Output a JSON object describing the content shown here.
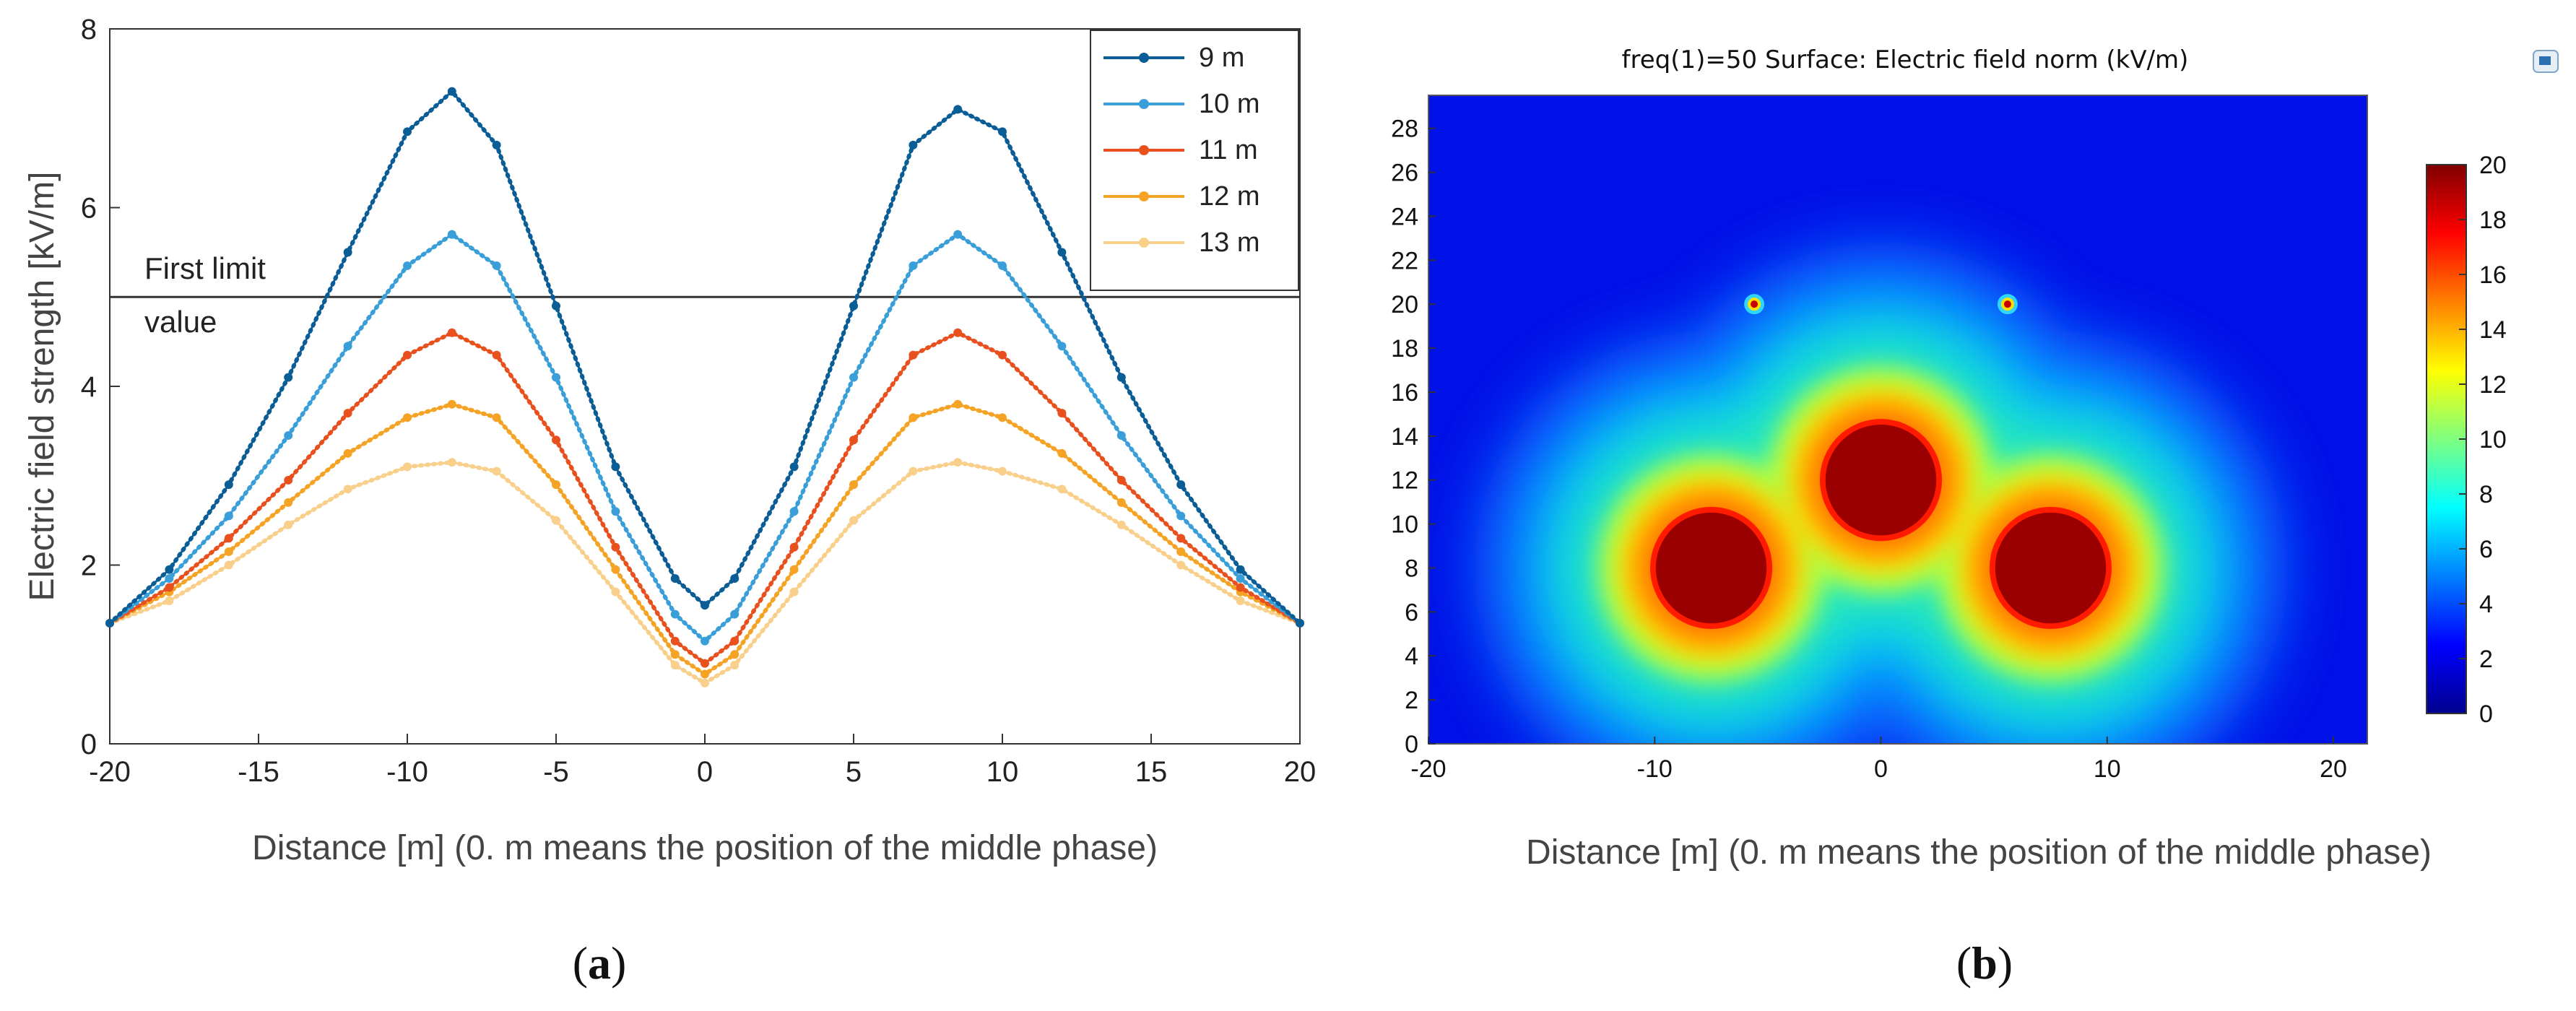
{
  "panels": {
    "a": {
      "caption_open": "(",
      "caption_letter": "a",
      "caption_close": ")"
    },
    "b": {
      "caption_open": "(",
      "caption_letter": "b",
      "caption_close": ")"
    }
  },
  "chart_data": [
    {
      "type": "line",
      "panel": "a",
      "title": "",
      "xlabel": "Distance [m] (0. m means the position of the middle phase)",
      "ylabel": "Electric field strength [kV/m]",
      "xlim": [
        -20,
        20
      ],
      "ylim": [
        0,
        8
      ],
      "xticks": [
        "-20",
        "-15",
        "-10",
        "-5",
        "0",
        "5",
        "10",
        "15",
        "20"
      ],
      "yticks": [
        "0",
        "2",
        "4",
        "6",
        "8"
      ],
      "grid": false,
      "legend": "top-right",
      "annotations": [
        "First limit",
        "value"
      ],
      "reference_line": {
        "y": 5,
        "label": "First limit value"
      },
      "x": [
        -20,
        -18,
        -16,
        -14,
        -12,
        -10,
        -8.5,
        -7,
        -5,
        -3,
        -1,
        0,
        1,
        3,
        5,
        7,
        8.5,
        10,
        12,
        14,
        16,
        18,
        20
      ],
      "series": [
        {
          "name": "9 m",
          "color": "#0b5d96",
          "values": [
            1.35,
            1.95,
            2.9,
            4.1,
            5.5,
            6.85,
            7.3,
            6.7,
            4.9,
            3.1,
            1.85,
            1.55,
            1.85,
            3.1,
            4.9,
            6.7,
            7.1,
            6.85,
            5.5,
            4.1,
            2.9,
            1.95,
            1.35
          ]
        },
        {
          "name": "10 m",
          "color": "#3a9fd8",
          "values": [
            1.35,
            1.85,
            2.55,
            3.45,
            4.45,
            5.35,
            5.7,
            5.35,
            4.1,
            2.6,
            1.45,
            1.15,
            1.45,
            2.6,
            4.1,
            5.35,
            5.7,
            5.35,
            4.45,
            3.45,
            2.55,
            1.85,
            1.35
          ]
        },
        {
          "name": "11 m",
          "color": "#e8501e",
          "values": [
            1.35,
            1.75,
            2.3,
            2.95,
            3.7,
            4.35,
            4.6,
            4.35,
            3.4,
            2.2,
            1.15,
            0.9,
            1.15,
            2.2,
            3.4,
            4.35,
            4.6,
            4.35,
            3.7,
            2.95,
            2.3,
            1.75,
            1.35
          ]
        },
        {
          "name": "12 m",
          "color": "#f4a325",
          "values": [
            1.35,
            1.7,
            2.15,
            2.7,
            3.25,
            3.65,
            3.8,
            3.65,
            2.9,
            1.95,
            1.0,
            0.78,
            1.0,
            1.95,
            2.9,
            3.65,
            3.8,
            3.65,
            3.25,
            2.7,
            2.15,
            1.7,
            1.35
          ]
        },
        {
          "name": "13 m",
          "color": "#f9cf8c",
          "values": [
            1.35,
            1.6,
            2.0,
            2.45,
            2.85,
            3.1,
            3.15,
            3.05,
            2.5,
            1.7,
            0.88,
            0.68,
            0.88,
            1.7,
            2.5,
            3.05,
            3.15,
            3.05,
            2.85,
            2.45,
            2.0,
            1.6,
            1.35
          ]
        }
      ]
    },
    {
      "type": "heatmap",
      "panel": "b",
      "title": "freq(1)=50   Surface: Electric field norm (kV/m)",
      "xlabel": "Distance [m] (0. m means the position of the middle phase)",
      "ylabel": "",
      "xlim": [
        -20,
        21.5
      ],
      "ylim": [
        0,
        29.5
      ],
      "xticks": [
        "-20",
        "-10",
        "0",
        "10",
        "20"
      ],
      "yticks": [
        "0",
        "2",
        "4",
        "6",
        "8",
        "10",
        "12",
        "14",
        "16",
        "18",
        "20",
        "22",
        "24",
        "26",
        "28"
      ],
      "colorbar": {
        "min": 0,
        "max": 20,
        "ticks": [
          "0",
          "2",
          "4",
          "6",
          "8",
          "10",
          "12",
          "14",
          "16",
          "18",
          "20"
        ],
        "colormap": "jet"
      },
      "sources": [
        {
          "name": "left-phase",
          "x": -7.5,
          "y": 8,
          "value": 20
        },
        {
          "name": "middle-phase",
          "x": 0,
          "y": 12,
          "value": 20
        },
        {
          "name": "right-phase",
          "x": 7.5,
          "y": 8,
          "value": 20
        },
        {
          "name": "left-ground-wire",
          "x": -5.6,
          "y": 20,
          "value": 20
        },
        {
          "name": "right-ground-wire",
          "x": 5.6,
          "y": 20,
          "value": 20
        }
      ]
    }
  ]
}
